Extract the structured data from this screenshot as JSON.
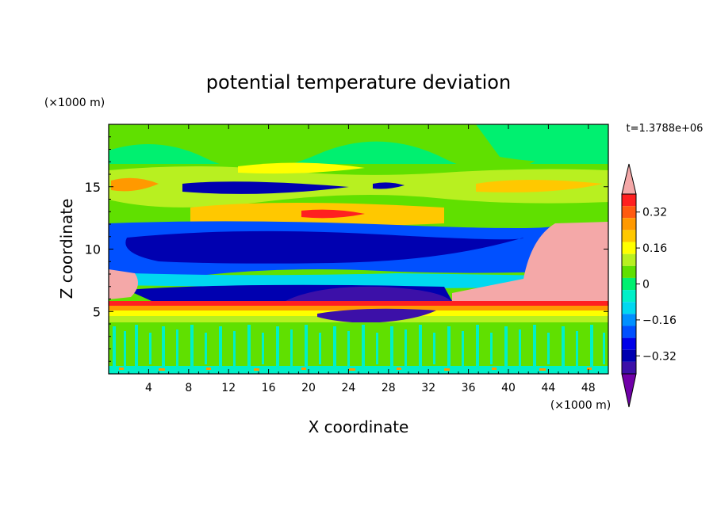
{
  "chart_data": {
    "type": "heatmap",
    "title": "potential temperature deviation",
    "xlabel": "X coordinate",
    "ylabel": "Z coordinate",
    "x_unit": "(×1000 m)",
    "y_unit": "(×1000 m)",
    "time_label": "t=1.3788e+06",
    "xlim": [
      0,
      50
    ],
    "ylim": [
      0,
      20
    ],
    "x_ticks": [
      4,
      8,
      12,
      16,
      20,
      24,
      28,
      32,
      36,
      40,
      44,
      48
    ],
    "y_ticks": [
      5,
      10,
      15
    ],
    "colorbar": {
      "levels": [
        0.4,
        0.36,
        0.32,
        0.28,
        0.24,
        0.2,
        0.16,
        0.12,
        0.08,
        0.04,
        0,
        -0.04,
        -0.08,
        -0.12,
        -0.16,
        -0.2,
        -0.24,
        -0.28,
        -0.32,
        -0.36,
        -0.4
      ],
      "tick_labels": [
        "0.32",
        "0.16",
        "0",
        "−0.16",
        "−0.32"
      ],
      "tick_values": [
        0.32,
        0.16,
        0,
        -0.16,
        -0.32
      ],
      "colors": [
        "#f4a8a8",
        "#ff2020",
        "#ff5a10",
        "#ff9900",
        "#ffc800",
        "#ffff00",
        "#b8f020",
        "#60e000",
        "#00f070",
        "#00f0c8",
        "#00d8f0",
        "#0090ff",
        "#0050ff",
        "#0000e8",
        "#0000b0",
        "#3c10a8",
        "#7000a8"
      ]
    },
    "bands": [
      {
        "z_range": [
          0.0,
          0.4
        ],
        "description_value": 0.04
      },
      {
        "z_range": [
          0.4,
          4.0
        ],
        "description_value": 0.02
      },
      {
        "z_range": [
          4.0,
          5.8
        ],
        "description_value": 0.3
      },
      {
        "z_range": [
          5.8,
          8.0
        ],
        "description_value": -0.3
      },
      {
        "z_range": [
          8.0,
          12.0
        ],
        "description_value": -0.34
      },
      {
        "z_range": [
          12.0,
          13.5
        ],
        "description_value": 0.1
      },
      {
        "z_range": [
          13.5,
          16.0
        ],
        "description_value": 0.22
      },
      {
        "z_range": [
          16.0,
          20.0
        ],
        "description_value": 0.04
      }
    ]
  }
}
